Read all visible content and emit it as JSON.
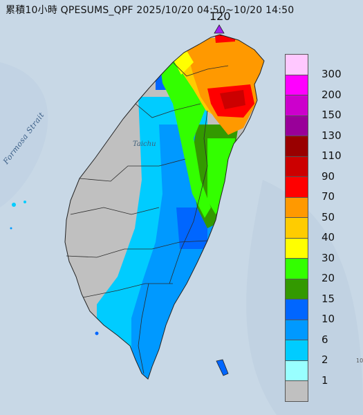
{
  "title": "累積10小時 QPESUMS_QPF 2025/10/20 04:50~10/20 14:50",
  "max_marker": {
    "value": "120",
    "color": "#a020f0"
  },
  "map_labels": {
    "strait": "Formosa Strait",
    "city": "Taichu",
    "edge": "10"
  },
  "legend": [
    {
      "label": "300",
      "color": "#ffc8ff"
    },
    {
      "label": "200",
      "color": "#ff00ff"
    },
    {
      "label": "150",
      "color": "#cc00cc"
    },
    {
      "label": "130",
      "color": "#990099"
    },
    {
      "label": "110",
      "color": "#990000"
    },
    {
      "label": "90",
      "color": "#cc0000"
    },
    {
      "label": "70",
      "color": "#ff0000"
    },
    {
      "label": "50",
      "color": "#ff9900"
    },
    {
      "label": "40",
      "color": "#ffcc00"
    },
    {
      "label": "30",
      "color": "#ffff00"
    },
    {
      "label": "20",
      "color": "#33ff00"
    },
    {
      "label": "15",
      "color": "#339900"
    },
    {
      "label": "10",
      "color": "#0066ff"
    },
    {
      "label": "6",
      "color": "#0099ff"
    },
    {
      "label": "2",
      "color": "#00ccff"
    },
    {
      "label": "1",
      "color": "#99ffff"
    },
    {
      "label": "",
      "color": "#c0c0c0"
    }
  ]
}
